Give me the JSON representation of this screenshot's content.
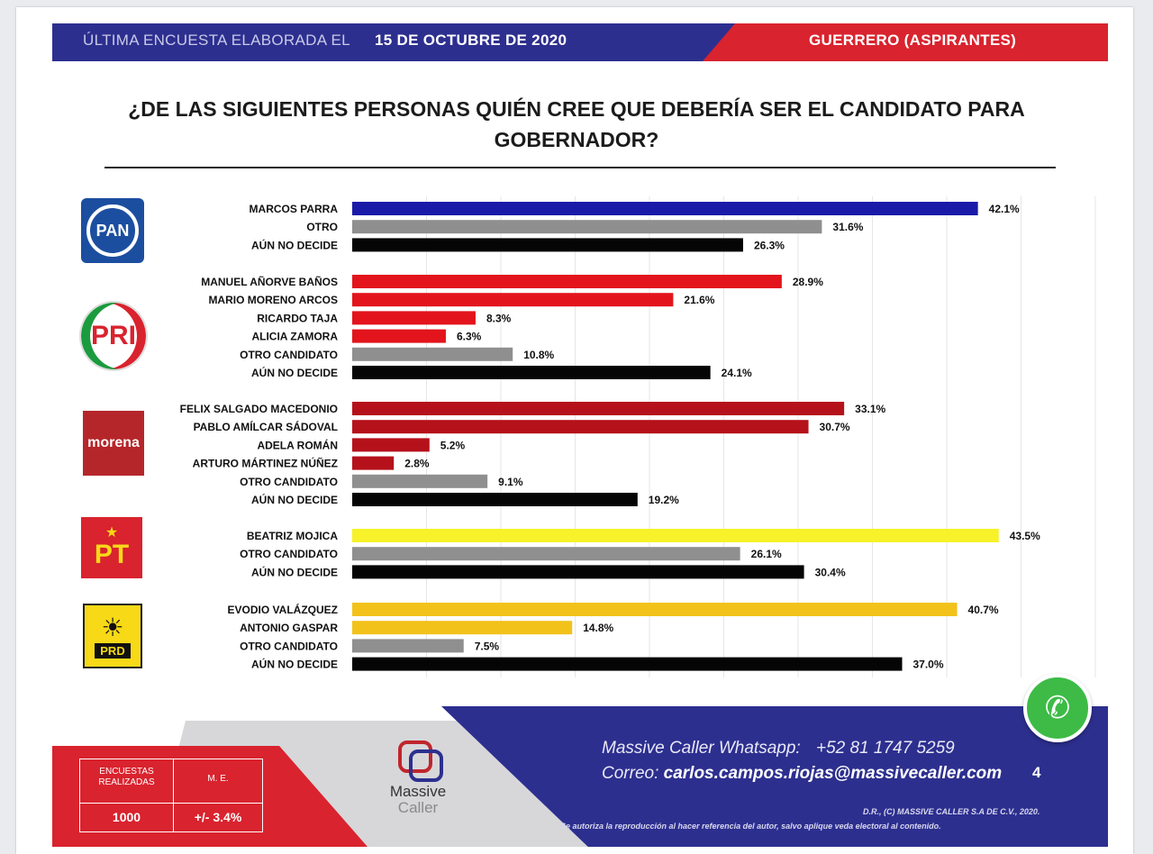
{
  "header": {
    "left_text": "ÚLTIMA ENCUESTA ELABORADA EL",
    "date": "15 DE OCTUBRE DE 2020",
    "right_text": "GUERRERO (ASPIRANTES)"
  },
  "title_line1": "¿DE LAS SIGUIENTES PERSONAS QUIÉN CREE QUE DEBERÍA SER EL CANDIDATO PARA",
  "title_line2": "GOBERNADOR?",
  "parties": {
    "pan": "PAN",
    "pri": "PRI",
    "morena": "morena",
    "pt": "PT",
    "prd": "PRD"
  },
  "colors": {
    "pan": "#1a1aa8",
    "pri": "#e3141c",
    "morena": "#b5111b",
    "pt": "#f7f229",
    "prd": "#f2c21b",
    "otro": "#8f8f8f",
    "no_decide": "#050505"
  },
  "chart_data": {
    "type": "bar",
    "orientation": "horizontal",
    "title": "¿DE LAS SIGUIENTES PERSONAS QUIÉN CREE QUE DEBERÍA SER EL CANDIDATO PARA GOBERNADOR?",
    "xlim": [
      0,
      50
    ],
    "unit": "%",
    "groups": [
      {
        "party": "PAN",
        "items": [
          {
            "label": "MARCOS PARRA",
            "value": 42.1,
            "display": "42.1%",
            "color": "#1a1aa8"
          },
          {
            "label": "OTRO",
            "value": 31.6,
            "display": "31.6%",
            "color": "#8f8f8f"
          },
          {
            "label": "AÚN NO DECIDE",
            "value": 26.3,
            "display": "26.3%",
            "color": "#050505"
          }
        ]
      },
      {
        "party": "PRI",
        "items": [
          {
            "label": "MANUEL AÑORVE BAÑOS",
            "value": 28.9,
            "display": "28.9%",
            "color": "#e3141c"
          },
          {
            "label": "MARIO MORENO ARCOS",
            "value": 21.6,
            "display": "21.6%",
            "color": "#e3141c"
          },
          {
            "label": "RICARDO TAJA",
            "value": 8.3,
            "display": "8.3%",
            "color": "#e3141c"
          },
          {
            "label": "ALICIA ZAMORA",
            "value": 6.3,
            "display": "6.3%",
            "color": "#e3141c"
          },
          {
            "label": "OTRO CANDIDATO",
            "value": 10.8,
            "display": "10.8%",
            "color": "#8f8f8f"
          },
          {
            "label": "AÚN NO DECIDE",
            "value": 24.1,
            "display": "24.1%",
            "color": "#050505"
          }
        ]
      },
      {
        "party": "MORENA",
        "items": [
          {
            "label": "FELIX SALGADO MACEDONIO",
            "value": 33.1,
            "display": "33.1%",
            "color": "#b5111b"
          },
          {
            "label": "PABLO AMÍLCAR SÁDOVAL",
            "value": 30.7,
            "display": "30.7%",
            "color": "#b5111b"
          },
          {
            "label": "ADELA ROMÁN",
            "value": 5.2,
            "display": "5.2%",
            "color": "#b5111b"
          },
          {
            "label": "ARTURO MÁRTINEZ NÚÑEZ",
            "value": 2.8,
            "display": "2.8%",
            "color": "#b5111b"
          },
          {
            "label": "OTRO CANDIDATO",
            "value": 9.1,
            "display": "9.1%",
            "color": "#8f8f8f"
          },
          {
            "label": "AÚN NO DECIDE",
            "value": 19.2,
            "display": "19.2%",
            "color": "#050505"
          }
        ]
      },
      {
        "party": "PT",
        "items": [
          {
            "label": "BEATRIZ MOJICA",
            "value": 43.5,
            "display": "43.5%",
            "color": "#f7f229"
          },
          {
            "label": "OTRO CANDIDATO",
            "value": 26.1,
            "display": "26.1%",
            "color": "#8f8f8f"
          },
          {
            "label": "AÚN NO DECIDE",
            "value": 30.4,
            "display": "30.4%",
            "color": "#050505"
          }
        ]
      },
      {
        "party": "PRD",
        "items": [
          {
            "label": "EVODIO VALÁZQUEZ",
            "value": 40.7,
            "display": "40.7%",
            "color": "#f2c21b"
          },
          {
            "label": "ANTONIO GASPAR",
            "value": 14.8,
            "display": "14.8%",
            "color": "#f2c21b"
          },
          {
            "label": "OTRO CANDIDATO",
            "value": 7.5,
            "display": "7.5%",
            "color": "#8f8f8f"
          },
          {
            "label": "AÚN NO DECIDE",
            "value": 37.0,
            "display": "37.0%",
            "color": "#050505"
          }
        ]
      }
    ]
  },
  "footer": {
    "encuestas_label_1": "ENCUESTAS",
    "encuestas_label_2": "REALIZADAS",
    "me_label": "M. E.",
    "encuestas_value": "1000",
    "me_value": "+/- 3.4%",
    "brand_line1": "Massive",
    "brand_line2": "Caller",
    "whatsapp_label": "Massive Caller Whatsapp:",
    "whatsapp_number": "+52 81 1747 5259",
    "email_label": "Correo:",
    "email": "carlos.campos.riojas@massivecaller.com",
    "page_number": "4",
    "legal_line1": "D.R., (C) MASSIVE CALLER S.A DE C.V., 2020.",
    "legal_line2": "Se autoriza la reproducción al hacer referencia del autor, salvo aplique veda electoral al contenido."
  }
}
